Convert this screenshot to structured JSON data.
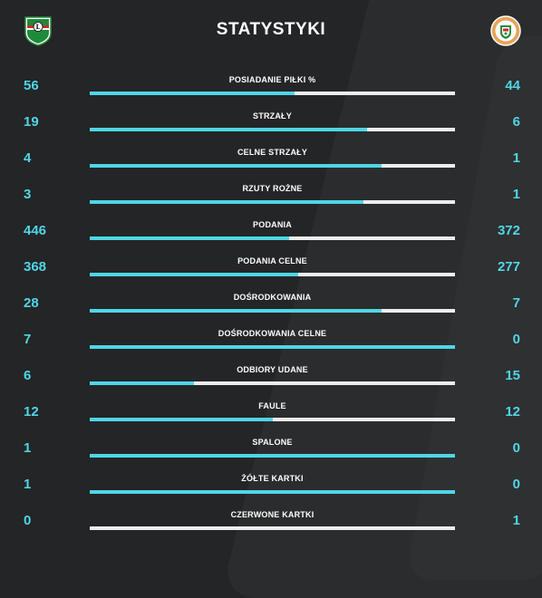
{
  "header": {
    "title": "STATYSTYKI"
  },
  "colors": {
    "background": "#242526",
    "accent": "#4fd6e6",
    "bar_track": "#ededed",
    "text": "#ffffff"
  },
  "stats": [
    {
      "label": "POSIADANIE PIŁKI %",
      "home": "56",
      "away": "44",
      "home_share": 0.56
    },
    {
      "label": "STRZAŁY",
      "home": "19",
      "away": "6",
      "home_share": 0.76
    },
    {
      "label": "CELNE STRZAŁY",
      "home": "4",
      "away": "1",
      "home_share": 0.8
    },
    {
      "label": "RZUTY ROŻNE",
      "home": "3",
      "away": "1",
      "home_share": 0.75
    },
    {
      "label": "PODANIA",
      "home": "446",
      "away": "372",
      "home_share": 0.545
    },
    {
      "label": "PODANIA CELNE",
      "home": "368",
      "away": "277",
      "home_share": 0.57
    },
    {
      "label": "DOŚRODKOWANIA",
      "home": "28",
      "away": "7",
      "home_share": 0.8
    },
    {
      "label": "DOŚRODKOWANIA CELNE",
      "home": "7",
      "away": "0",
      "home_share": 1.0
    },
    {
      "label": "ODBIORY UDANE",
      "home": "6",
      "away": "15",
      "home_share": 0.286
    },
    {
      "label": "FAULE",
      "home": "12",
      "away": "12",
      "home_share": 0.5
    },
    {
      "label": "SPALONE",
      "home": "1",
      "away": "0",
      "home_share": 1.0
    },
    {
      "label": "ŻÓŁTE KARTKI",
      "home": "1",
      "away": "0",
      "home_share": 1.0
    },
    {
      "label": "CZERWONE KARTKI",
      "home": "0",
      "away": "1",
      "home_share": 0.0
    }
  ]
}
